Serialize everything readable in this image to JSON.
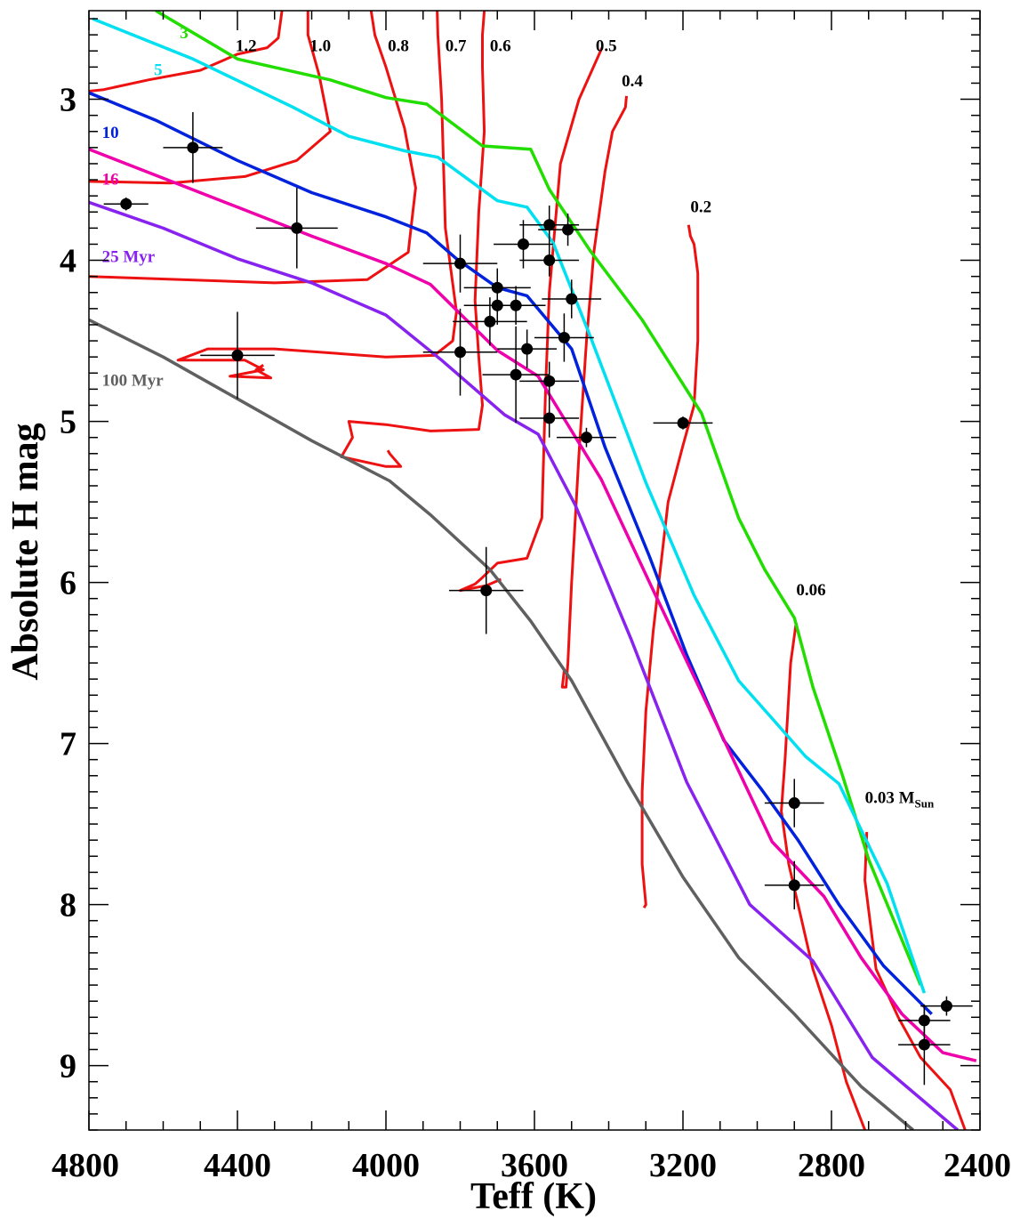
{
  "chart_data": {
    "type": "scatter",
    "xlabel": "Teff (K)",
    "ylabel": "Absolute H mag",
    "xlim": [
      4800,
      2400
    ],
    "ylim": [
      9.4,
      2.45
    ],
    "y_inverted": true,
    "x_ticks": [
      4800,
      4400,
      4000,
      3600,
      3200,
      2800,
      2400
    ],
    "y_ticks": [
      3,
      4,
      5,
      6,
      7,
      8,
      9
    ],
    "grid": false,
    "legend": "none",
    "isochrones": [
      {
        "name": "3",
        "label": "3",
        "color": "#22dd00",
        "label_at": [
          4555,
          2.62
        ],
        "points": [
          [
            4620,
            2.45
          ],
          [
            4400,
            2.75
          ],
          [
            4150,
            2.88
          ],
          [
            4000,
            2.99
          ],
          [
            3890,
            3.03
          ],
          [
            3740,
            3.29
          ],
          [
            3610,
            3.31
          ],
          [
            3560,
            3.56
          ],
          [
            3450,
            3.94
          ],
          [
            3310,
            4.37
          ],
          [
            3150,
            4.95
          ],
          [
            3050,
            5.6
          ],
          [
            2980,
            5.92
          ],
          [
            2900,
            6.22
          ],
          [
            2850,
            6.65
          ],
          [
            2770,
            7.2
          ],
          [
            2700,
            7.72
          ],
          [
            2560,
            8.5
          ]
        ]
      },
      {
        "name": "5",
        "label": "5",
        "color": "#00e0f0",
        "label_at": [
          4625,
          2.85
        ],
        "points": [
          [
            4790,
            2.5
          ],
          [
            4520,
            2.75
          ],
          [
            4250,
            3.05
          ],
          [
            4100,
            3.23
          ],
          [
            3950,
            3.32
          ],
          [
            3860,
            3.36
          ],
          [
            3700,
            3.63
          ],
          [
            3620,
            3.67
          ],
          [
            3550,
            3.89
          ],
          [
            3450,
            4.47
          ],
          [
            3300,
            5.38
          ],
          [
            3170,
            6.08
          ],
          [
            3050,
            6.61
          ],
          [
            2950,
            6.87
          ],
          [
            2870,
            7.08
          ],
          [
            2780,
            7.25
          ],
          [
            2650,
            7.87
          ],
          [
            2550,
            8.55
          ]
        ]
      },
      {
        "name": "10",
        "label": "10",
        "color": "#0022dd",
        "label_at": [
          4765,
          3.24
        ],
        "points": [
          [
            4800,
            2.96
          ],
          [
            4620,
            3.13
          ],
          [
            4400,
            3.38
          ],
          [
            4200,
            3.58
          ],
          [
            4000,
            3.73
          ],
          [
            3890,
            3.83
          ],
          [
            3810,
            3.99
          ],
          [
            3700,
            4.17
          ],
          [
            3620,
            4.22
          ],
          [
            3500,
            4.55
          ],
          [
            3410,
            5.16
          ],
          [
            3290,
            5.84
          ],
          [
            3190,
            6.45
          ],
          [
            3090,
            6.98
          ],
          [
            2990,
            7.28
          ],
          [
            2890,
            7.6
          ],
          [
            2780,
            8.0
          ],
          [
            2660,
            8.38
          ],
          [
            2530,
            8.68
          ]
        ]
      },
      {
        "name": "16",
        "label": "16",
        "color": "#ee00aa",
        "label_at": [
          4765,
          3.53
        ],
        "points": [
          [
            4800,
            3.31
          ],
          [
            4600,
            3.49
          ],
          [
            4400,
            3.67
          ],
          [
            4200,
            3.85
          ],
          [
            4000,
            4.02
          ],
          [
            3880,
            4.15
          ],
          [
            3700,
            4.56
          ],
          [
            3590,
            4.72
          ],
          [
            3420,
            5.36
          ],
          [
            3290,
            6.0
          ],
          [
            3130,
            6.78
          ],
          [
            2960,
            7.61
          ],
          [
            2820,
            7.95
          ],
          [
            2720,
            8.33
          ],
          [
            2610,
            8.68
          ],
          [
            2500,
            8.92
          ],
          [
            2410,
            8.97
          ]
        ]
      },
      {
        "name": "25 Myr",
        "label": "25 Myr",
        "color": "#8822ee",
        "label_at": [
          4765,
          4.01
        ],
        "points": [
          [
            4800,
            3.64
          ],
          [
            4600,
            3.8
          ],
          [
            4400,
            3.99
          ],
          [
            4200,
            4.14
          ],
          [
            4000,
            4.34
          ],
          [
            3850,
            4.62
          ],
          [
            3680,
            4.96
          ],
          [
            3590,
            5.08
          ],
          [
            3490,
            5.52
          ],
          [
            3340,
            6.35
          ],
          [
            3190,
            7.24
          ],
          [
            3020,
            8.0
          ],
          [
            2850,
            8.35
          ],
          [
            2690,
            8.95
          ],
          [
            2460,
            9.4
          ]
        ]
      },
      {
        "name": "100 Myr",
        "label": "100 Myr",
        "color": "#606060",
        "label_at": [
          4765,
          4.78
        ],
        "points": [
          [
            4800,
            4.37
          ],
          [
            4600,
            4.6
          ],
          [
            4400,
            4.86
          ],
          [
            4200,
            5.12
          ],
          [
            3990,
            5.37
          ],
          [
            3880,
            5.58
          ],
          [
            3720,
            5.92
          ],
          [
            3610,
            6.24
          ],
          [
            3500,
            6.61
          ],
          [
            3350,
            7.24
          ],
          [
            3200,
            7.83
          ],
          [
            3050,
            8.33
          ],
          [
            2900,
            8.68
          ],
          [
            2720,
            9.13
          ],
          [
            2580,
            9.4
          ]
        ]
      }
    ],
    "mass_tracks": [
      {
        "name": "1.2",
        "label": "1.2",
        "label_at": [
          4405,
          2.7
        ],
        "points": [
          [
            4280,
            2.45
          ],
          [
            4290,
            2.62
          ],
          [
            4320,
            2.68
          ],
          [
            4400,
            2.72
          ],
          [
            4500,
            2.82
          ],
          [
            4640,
            2.88
          ],
          [
            4760,
            2.94
          ],
          [
            4800,
            2.95
          ]
        ]
      },
      {
        "name": "1.0",
        "label": "1.0",
        "label_at": [
          4205,
          2.7
        ],
        "points": [
          [
            4210,
            2.45
          ],
          [
            4210,
            2.6
          ],
          [
            4180,
            2.85
          ],
          [
            4150,
            3.2
          ],
          [
            4240,
            3.38
          ],
          [
            4380,
            3.48
          ],
          [
            4580,
            3.52
          ],
          [
            4800,
            3.51
          ]
        ]
      },
      {
        "name": "0.8",
        "label": "0.8",
        "label_at": [
          3995,
          2.7
        ],
        "points": [
          [
            4040,
            2.45
          ],
          [
            4030,
            2.6
          ],
          [
            4000,
            2.8
          ],
          [
            3950,
            3.18
          ],
          [
            3920,
            3.55
          ],
          [
            3930,
            3.75
          ],
          [
            3940,
            3.95
          ],
          [
            4050,
            4.12
          ],
          [
            4300,
            4.14
          ],
          [
            4800,
            4.1
          ]
        ]
      },
      {
        "name": "0.7",
        "label": "0.7",
        "label_at": [
          3840,
          2.7
        ],
        "points": [
          [
            3862,
            2.45
          ],
          [
            3860,
            2.6
          ],
          [
            3850,
            3.0
          ],
          [
            3840,
            3.8
          ],
          [
            3810,
            4.32
          ],
          [
            3820,
            4.5
          ],
          [
            3870,
            4.59
          ],
          [
            4000,
            4.6
          ],
          [
            4300,
            4.55
          ],
          [
            4480,
            4.55
          ],
          [
            4560,
            4.62
          ],
          [
            4380,
            4.62
          ],
          [
            4330,
            4.68
          ],
          [
            4420,
            4.72
          ],
          [
            4310,
            4.73
          ],
          [
            4350,
            4.68
          ],
          [
            4330,
            4.65
          ]
        ]
      },
      {
        "name": "0.6",
        "label": "0.6",
        "label_at": [
          3720,
          2.7
        ],
        "points": [
          [
            3735,
            2.45
          ],
          [
            3740,
            2.6
          ],
          [
            3740,
            2.8
          ],
          [
            3735,
            3.2
          ],
          [
            3750,
            3.7
          ],
          [
            3760,
            4.25
          ],
          [
            3750,
            4.6
          ],
          [
            3740,
            4.9
          ],
          [
            3750,
            5.05
          ],
          [
            3880,
            5.06
          ],
          [
            4000,
            5.02
          ],
          [
            4100,
            5.0
          ],
          [
            4090,
            5.1
          ],
          [
            4120,
            5.22
          ],
          [
            4000,
            5.28
          ],
          [
            3960,
            5.28
          ],
          [
            3990,
            5.2
          ],
          [
            3995,
            5.18
          ]
        ]
      },
      {
        "name": "0.5",
        "label": "0.5",
        "label_at": [
          3435,
          2.7
        ],
        "points": [
          [
            3418,
            2.68
          ],
          [
            3480,
            3.0
          ],
          [
            3530,
            3.4
          ],
          [
            3560,
            4.2
          ],
          [
            3570,
            4.8
          ],
          [
            3580,
            5.6
          ],
          [
            3620,
            5.85
          ],
          [
            3700,
            5.88
          ],
          [
            3740,
            5.97
          ],
          [
            3760,
            6.01
          ],
          [
            3800,
            6.05
          ],
          [
            3730,
            6.02
          ],
          [
            3690,
            5.98
          ]
        ]
      },
      {
        "name": "0.4",
        "label": "0.4",
        "label_at": [
          3365,
          2.92
        ],
        "points": [
          [
            3352,
            2.98
          ],
          [
            3355,
            3.05
          ],
          [
            3390,
            3.2
          ],
          [
            3410,
            3.45
          ],
          [
            3440,
            3.95
          ],
          [
            3460,
            4.5
          ],
          [
            3480,
            5.2
          ],
          [
            3500,
            6.0
          ],
          [
            3510,
            6.5
          ],
          [
            3515,
            6.65
          ],
          [
            3525,
            6.65
          ],
          [
            3520,
            6.55
          ]
        ]
      },
      {
        "name": "0.2",
        "label": "0.2",
        "label_at": [
          3180,
          3.7
        ],
        "points": [
          [
            3185,
            3.78
          ],
          [
            3180,
            3.85
          ],
          [
            3170,
            3.9
          ],
          [
            3160,
            4.08
          ],
          [
            3160,
            4.5
          ],
          [
            3170,
            4.9
          ],
          [
            3200,
            5.15
          ],
          [
            3240,
            5.5
          ],
          [
            3280,
            6.3
          ],
          [
            3300,
            6.8
          ],
          [
            3310,
            7.3
          ],
          [
            3310,
            7.75
          ],
          [
            3300,
            8.0
          ],
          [
            3305,
            8.02
          ]
        ]
      },
      {
        "name": "0.06",
        "label": "0.06",
        "label_at": [
          2895,
          6.08
        ],
        "points": [
          [
            2895,
            6.25
          ],
          [
            2910,
            6.5
          ],
          [
            2925,
            7.1
          ],
          [
            2935,
            7.42
          ],
          [
            2915,
            7.75
          ],
          [
            2885,
            8.05
          ],
          [
            2850,
            8.4
          ],
          [
            2800,
            8.75
          ],
          [
            2760,
            9.1
          ],
          [
            2710,
            9.4
          ]
        ]
      },
      {
        "name": "0.03",
        "label": "0.03 M",
        "label_sub": "Sun",
        "label_at": [
          2710,
          7.37
        ],
        "points": [
          [
            2705,
            7.55
          ],
          [
            2710,
            7.85
          ],
          [
            2680,
            8.4
          ],
          [
            2620,
            8.7
          ],
          [
            2560,
            8.95
          ],
          [
            2480,
            9.15
          ],
          [
            2440,
            9.4
          ]
        ]
      }
    ],
    "points": [
      {
        "x": 4700,
        "y": 3.65,
        "xerr": 60,
        "yerr": 0.04
      },
      {
        "x": 4520,
        "y": 3.3,
        "xerr": 80,
        "yerr": 0.22
      },
      {
        "x": 4400,
        "y": 4.59,
        "xerr": 100,
        "yerr": 0.27
      },
      {
        "x": 4240,
        "y": 3.8,
        "xerr": 110,
        "yerr": 0.25
      },
      {
        "x": 3800,
        "y": 4.02,
        "xerr": 100,
        "yerr": 0.18
      },
      {
        "x": 3800,
        "y": 4.57,
        "xerr": 100,
        "yerr": 0.27
      },
      {
        "x": 3730,
        "y": 6.05,
        "xerr": 100,
        "yerr": 0.27
      },
      {
        "x": 3720,
        "y": 4.38,
        "xerr": 100,
        "yerr": 0.15
      },
      {
        "x": 3700,
        "y": 4.17,
        "xerr": 90,
        "yerr": 0.12
      },
      {
        "x": 3700,
        "y": 4.28,
        "xerr": 90,
        "yerr": 0.12
      },
      {
        "x": 3650,
        "y": 4.28,
        "xerr": 80,
        "yerr": 0.12
      },
      {
        "x": 3650,
        "y": 4.71,
        "xerr": 90,
        "yerr": 0.3
      },
      {
        "x": 3630,
        "y": 3.9,
        "xerr": 80,
        "yerr": 0.15
      },
      {
        "x": 3620,
        "y": 4.55,
        "xerr": 80,
        "yerr": 0.12
      },
      {
        "x": 3560,
        "y": 3.78,
        "xerr": 80,
        "yerr": 0.12
      },
      {
        "x": 3560,
        "y": 4.0,
        "xerr": 80,
        "yerr": 0.1
      },
      {
        "x": 3560,
        "y": 4.75,
        "xerr": 80,
        "yerr": 0.12
      },
      {
        "x": 3560,
        "y": 4.98,
        "xerr": 80,
        "yerr": 0.12
      },
      {
        "x": 3520,
        "y": 4.48,
        "xerr": 80,
        "yerr": 0.15
      },
      {
        "x": 3510,
        "y": 3.81,
        "xerr": 80,
        "yerr": 0.1
      },
      {
        "x": 3500,
        "y": 4.24,
        "xerr": 80,
        "yerr": 0.12
      },
      {
        "x": 3460,
        "y": 5.1,
        "xerr": 80,
        "yerr": 0.06
      },
      {
        "x": 3200,
        "y": 5.01,
        "xerr": 80,
        "yerr": 0.04
      },
      {
        "x": 2900,
        "y": 7.37,
        "xerr": 80,
        "yerr": 0.15
      },
      {
        "x": 2900,
        "y": 7.88,
        "xerr": 80,
        "yerr": 0.15
      },
      {
        "x": 2550,
        "y": 8.72,
        "xerr": 70,
        "yerr": 0.08
      },
      {
        "x": 2550,
        "y": 8.87,
        "xerr": 70,
        "yerr": 0.25
      },
      {
        "x": 2490,
        "y": 8.63,
        "xerr": 70,
        "yerr": 0.06
      }
    ],
    "track_color": "#ee1111",
    "point_color": "#000000"
  }
}
